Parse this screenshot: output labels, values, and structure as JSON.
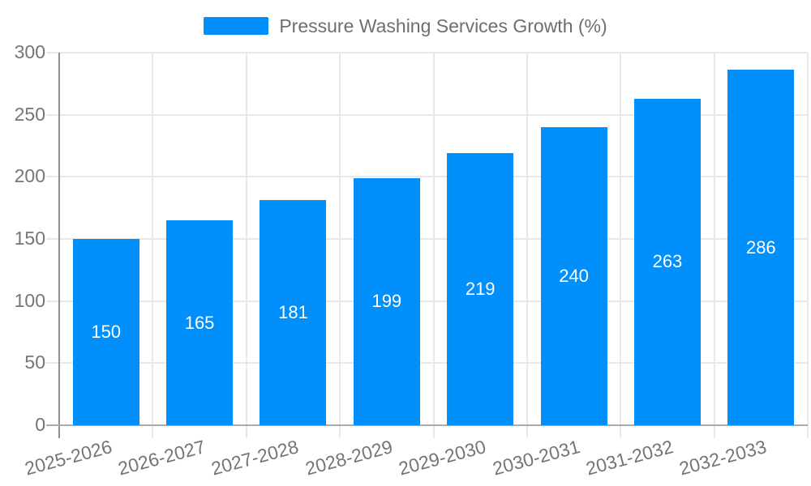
{
  "legend": {
    "label": "Pressure Washing Services Growth (%)"
  },
  "chart_data": {
    "type": "bar",
    "title": "Pressure Washing Services Growth (%)",
    "categories": [
      "2025-2026",
      "2026-2027",
      "2027-2028",
      "2028-2029",
      "2029-2030",
      "2030-2031",
      "2031-2032",
      "2032-2033"
    ],
    "values": [
      150,
      165,
      181,
      199,
      219,
      240,
      263,
      286
    ],
    "value_labels": [
      "150",
      "165",
      "181",
      "199",
      "219",
      "240",
      "263",
      "286"
    ],
    "xlabel": "",
    "ylabel": "",
    "ylim": [
      0,
      300
    ],
    "yticks": [
      0,
      50,
      100,
      150,
      200,
      250,
      300
    ],
    "grid": true,
    "legend_position": "top",
    "colors": {
      "bar": "#008FFB",
      "grid": "#e8e8e8",
      "y_axis_line": "#8f8f8f",
      "x_axis_line": "#ababab",
      "tick_text": "#757575",
      "legend_text": "#6e6e6e",
      "bar_label_text": "#ffffff",
      "background": "#ffffff"
    }
  }
}
